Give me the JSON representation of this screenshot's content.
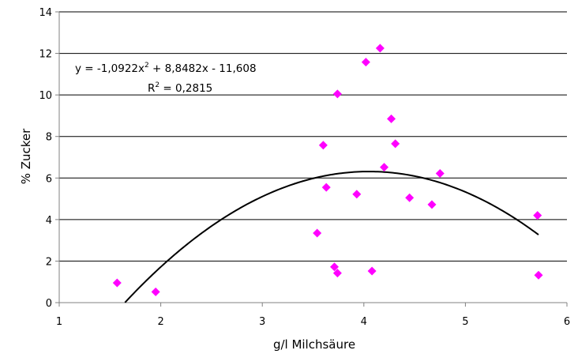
{
  "chart_data": {
    "type": "scatter",
    "title": "",
    "xlabel": "g/l Milchsäure",
    "ylabel": "% Zucker",
    "xlim": [
      1,
      6
    ],
    "ylim": [
      0,
      14
    ],
    "x_ticks": [
      "1",
      "2",
      "3",
      "4",
      "5",
      "6"
    ],
    "y_ticks": [
      "0",
      "2",
      "4",
      "6",
      "8",
      "10",
      "12",
      "14"
    ],
    "grid": "horizontal",
    "legend": "none",
    "marker_color": "#FF00FF",
    "trend_color": "#000000",
    "points": [
      {
        "x": 1.57,
        "y": 0.95
      },
      {
        "x": 1.95,
        "y": 0.52
      },
      {
        "x": 3.54,
        "y": 3.35
      },
      {
        "x": 3.6,
        "y": 7.58
      },
      {
        "x": 3.63,
        "y": 5.55
      },
      {
        "x": 3.71,
        "y": 1.72
      },
      {
        "x": 3.74,
        "y": 1.42
      },
      {
        "x": 3.74,
        "y": 10.05
      },
      {
        "x": 3.93,
        "y": 5.22
      },
      {
        "x": 4.02,
        "y": 11.58
      },
      {
        "x": 4.08,
        "y": 1.52
      },
      {
        "x": 4.16,
        "y": 12.25
      },
      {
        "x": 4.2,
        "y": 6.52
      },
      {
        "x": 4.27,
        "y": 8.85
      },
      {
        "x": 4.31,
        "y": 7.65
      },
      {
        "x": 4.45,
        "y": 5.05
      },
      {
        "x": 4.67,
        "y": 4.72
      },
      {
        "x": 4.75,
        "y": 6.22
      },
      {
        "x": 5.71,
        "y": 4.2
      },
      {
        "x": 5.72,
        "y": 1.32
      }
    ],
    "trendline": {
      "type": "polynomial",
      "a": -1.0922,
      "b": 8.8482,
      "c": -11.608,
      "x_range": [
        1.5,
        5.72
      ]
    },
    "annotations": {
      "equation_prefix": "y = -1,0922x",
      "equation_exp": "2",
      "equation_suffix": " + 8,8482x - 11,608",
      "r2_prefix": "R",
      "r2_exp": "2",
      "r2_suffix": " = 0,2815"
    }
  }
}
